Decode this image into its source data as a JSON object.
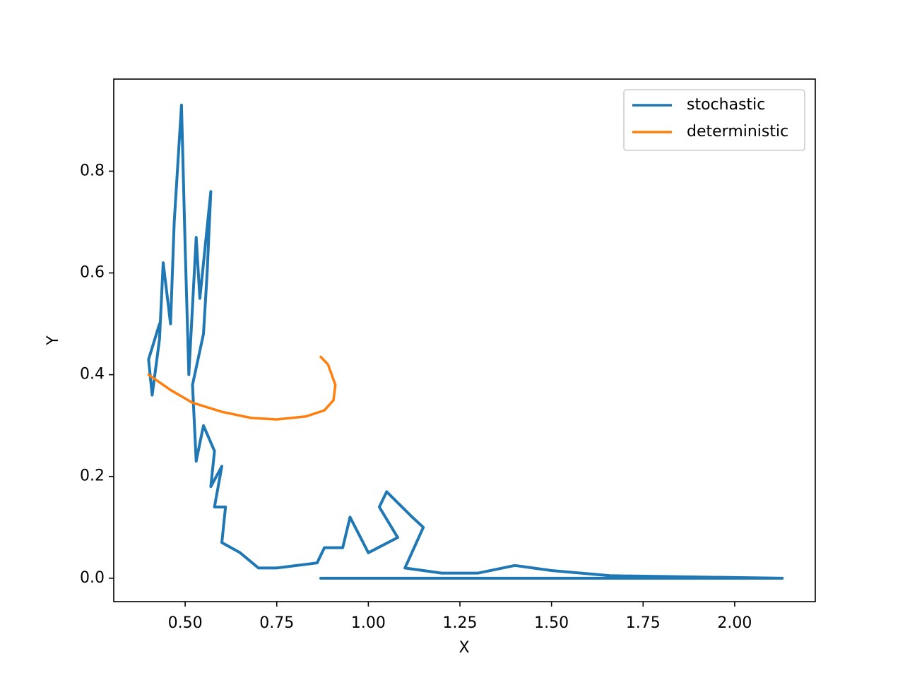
{
  "chart_data": {
    "type": "line",
    "x_label": "X",
    "y_label": "Y",
    "xlim": [
      0.305,
      2.22
    ],
    "ylim": [
      -0.046,
      0.981
    ],
    "xticks": [
      {
        "value": 0.5,
        "label": "0.50"
      },
      0.75,
      {
        "value": 1.0,
        "label": "1.00"
      },
      1.25,
      {
        "value": 1.5,
        "label": "1.50"
      },
      1.75,
      {
        "value": 2.0,
        "label": "2.00"
      }
    ],
    "yticks": [
      {
        "value": 0.0,
        "label": "0.0"
      },
      0.2,
      0.4,
      0.6,
      0.8
    ],
    "grid": false,
    "legend": "upper right",
    "series": [
      {
        "name": "stochastic",
        "color": "#1f77b4",
        "x": [
          0.87,
          2.13,
          1.66,
          1.5,
          1.4,
          1.3,
          1.2,
          1.1,
          1.15,
          1.12,
          1.05,
          1.03,
          1.08,
          1.0,
          0.95,
          0.93,
          0.88,
          0.86,
          0.75,
          0.7,
          0.65,
          0.6,
          0.61,
          0.58,
          0.6,
          0.57,
          0.58,
          0.55,
          0.53,
          0.52,
          0.55,
          0.56,
          0.57,
          0.54,
          0.53,
          0.51,
          0.5,
          0.49,
          0.47,
          0.46,
          0.44,
          0.43,
          0.41,
          0.4,
          0.43
        ],
        "values": [
          0.0,
          0.0,
          0.005,
          0.015,
          0.025,
          0.01,
          0.01,
          0.02,
          0.1,
          0.12,
          0.17,
          0.14,
          0.08,
          0.05,
          0.12,
          0.06,
          0.06,
          0.03,
          0.02,
          0.02,
          0.05,
          0.07,
          0.14,
          0.14,
          0.22,
          0.18,
          0.25,
          0.3,
          0.23,
          0.38,
          0.48,
          0.6,
          0.76,
          0.55,
          0.67,
          0.4,
          0.65,
          0.93,
          0.7,
          0.5,
          0.62,
          0.47,
          0.36,
          0.43,
          0.5
        ]
      },
      {
        "name": "deterministic",
        "color": "#ff7f0e",
        "x": [
          0.87,
          0.89,
          0.91,
          0.905,
          0.88,
          0.83,
          0.75,
          0.68,
          0.6,
          0.52,
          0.46,
          0.4
        ],
        "values": [
          0.435,
          0.42,
          0.38,
          0.35,
          0.33,
          0.318,
          0.312,
          0.315,
          0.327,
          0.345,
          0.37,
          0.4
        ]
      }
    ]
  }
}
